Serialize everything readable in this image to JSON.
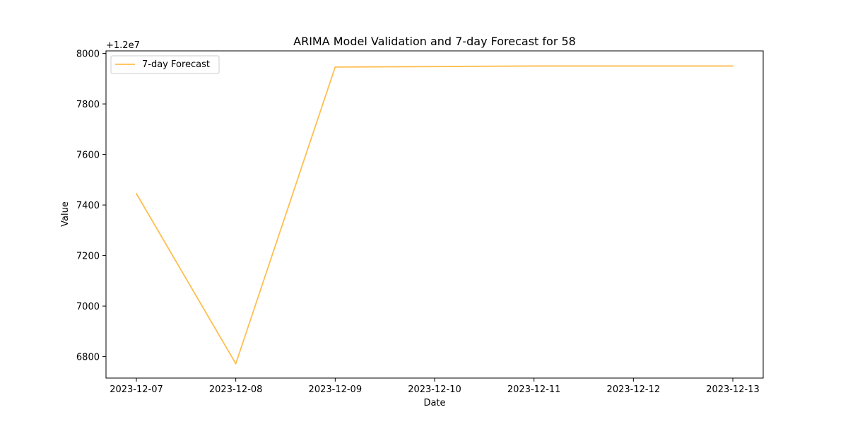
{
  "chart_data": {
    "type": "line",
    "title": "ARIMA Model Validation and 7-day Forecast for 58",
    "xlabel": "Date",
    "ylabel": "Value",
    "y_offset_label": "+1.2e7",
    "y_offset": 12000000,
    "x": [
      "2023-12-07",
      "2023-12-08",
      "2023-12-09",
      "2023-12-10",
      "2023-12-11",
      "2023-12-12",
      "2023-12-13"
    ],
    "x_ticks": [
      "2023-12-07",
      "2023-12-08",
      "2023-12-09",
      "2023-12-10",
      "2023-12-11",
      "2023-12-12",
      "2023-12-13"
    ],
    "ylim": [
      6715,
      8010
    ],
    "y_ticks": [
      6800,
      7000,
      7200,
      7400,
      7600,
      7800,
      8000
    ],
    "series": [
      {
        "name": "7-day Forecast",
        "color": "#FFBE50",
        "values": [
          7445,
          6772,
          7946,
          7948,
          7950,
          7950,
          7950
        ]
      }
    ],
    "legend_position": "top-left",
    "grid": false
  }
}
